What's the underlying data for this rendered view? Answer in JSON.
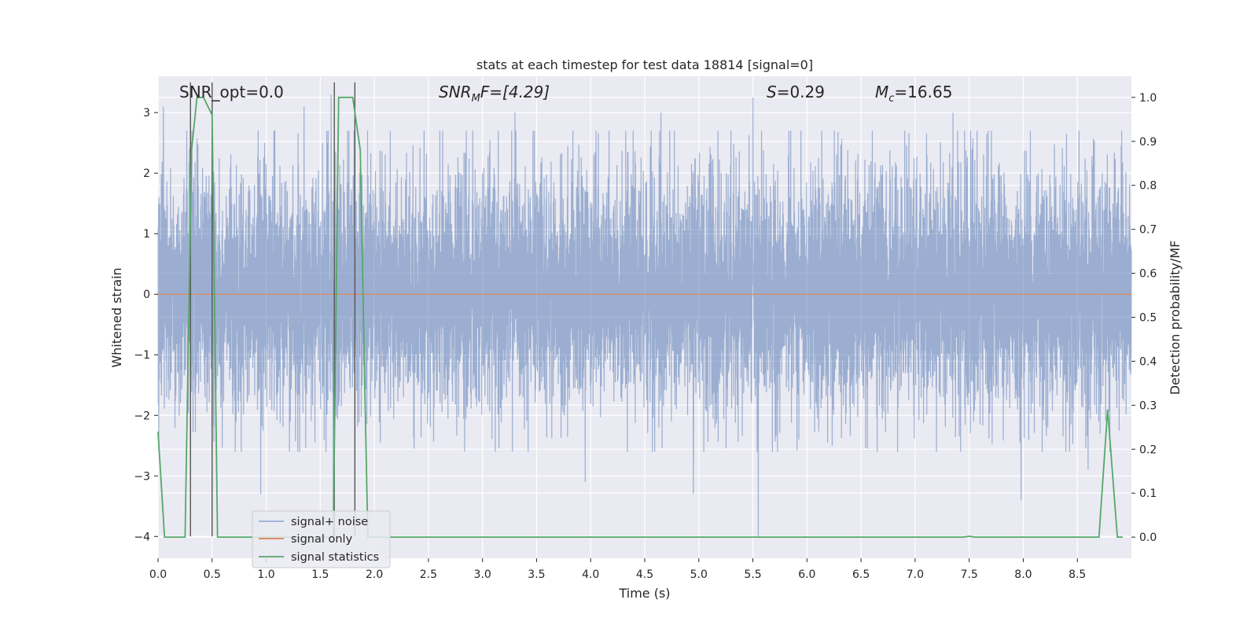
{
  "chart_data": {
    "type": "line",
    "title": "stats at each timestep for test data 18814 [signal=0]",
    "xlabel": "Time (s)",
    "ylabel": "Whitened strain",
    "y2label": "Detection probability/MF",
    "xlim": [
      0.0,
      9.0
    ],
    "ylim": [
      -4.36,
      3.6
    ],
    "y2lim": [
      -0.048,
      1.048
    ],
    "xticks": [
      0.0,
      0.5,
      1.0,
      1.5,
      2.0,
      2.5,
      3.0,
      3.5,
      4.0,
      4.5,
      5.0,
      5.5,
      6.0,
      6.5,
      7.0,
      7.5,
      8.0,
      8.5
    ],
    "xtick_labels": [
      "0.0",
      "0.5",
      "1.0",
      "1.5",
      "2.0",
      "2.5",
      "3.0",
      "3.5",
      "4.0",
      "4.5",
      "5.0",
      "5.5",
      "6.0",
      "6.5",
      "7.0",
      "7.5",
      "8.0",
      "8.5"
    ],
    "yticks": [
      -4,
      -3,
      -2,
      -1,
      0,
      1,
      2,
      3
    ],
    "ytick_labels": [
      "−4",
      "−3",
      "−2",
      "−1",
      "0",
      "1",
      "2",
      "3"
    ],
    "y2ticks": [
      0.0,
      0.1,
      0.2,
      0.3,
      0.4,
      0.5,
      0.6,
      0.7,
      0.8,
      0.9,
      1.0
    ],
    "y2tick_labels": [
      "0.0",
      "0.1",
      "0.2",
      "0.3",
      "0.4",
      "0.5",
      "0.6",
      "0.7",
      "0.8",
      "0.9",
      "1.0"
    ],
    "annotations": {
      "snr_opt": "SNR_opt=0.0",
      "snr_mf_base": "SNR",
      "snr_mf_sub": "M",
      "snr_mf_rest": "F=[4.29]",
      "s_base": "S",
      "s_rest": "=0.29",
      "mc_base": "M",
      "mc_sub": "c",
      "mc_rest": "=16.65"
    },
    "vertical_markers": [
      0.3,
      0.5,
      1.63,
      1.82
    ],
    "noise_envelope": {
      "series_name": "signal+ noise",
      "x_range": [
        0.0,
        9.0
      ],
      "typical_band": [
        -1.6,
        1.8
      ],
      "notable_peaks": [
        {
          "x": 0.05,
          "y": 3.1
        },
        {
          "x": 0.5,
          "y": 2.4
        },
        {
          "x": 1.35,
          "y": 3.1
        },
        {
          "x": 1.6,
          "y": 3.3
        },
        {
          "x": 3.3,
          "y": 3.0
        },
        {
          "x": 4.65,
          "y": 3.0
        },
        {
          "x": 5.5,
          "y": 3.25
        },
        {
          "x": 7.35,
          "y": 3.0
        },
        {
          "x": 7.98,
          "y": 3.45
        }
      ],
      "notable_troughs": [
        {
          "x": 0.95,
          "y": -3.3
        },
        {
          "x": 1.62,
          "y": -3.8
        },
        {
          "x": 3.95,
          "y": -3.1
        },
        {
          "x": 4.95,
          "y": -3.3
        },
        {
          "x": 5.55,
          "y": -4.0
        },
        {
          "x": 7.98,
          "y": -3.4
        },
        {
          "x": 8.6,
          "y": -2.9
        }
      ]
    },
    "signal_only": {
      "series_name": "signal only",
      "value": 0.0
    },
    "signal_statistics": {
      "series_name": "signal statistics",
      "x": [
        0.0,
        0.06,
        0.25,
        0.31,
        0.36,
        0.42,
        0.5,
        0.55,
        1.62,
        1.67,
        1.72,
        1.8,
        1.87,
        1.91,
        1.94,
        2.0,
        7.45,
        7.5,
        7.55,
        8.7,
        8.78,
        8.87,
        8.92
      ],
      "y": [
        0.24,
        0.0,
        0.0,
        0.88,
        1.0,
        1.0,
        0.96,
        0.0,
        0.0,
        1.0,
        1.0,
        1.0,
        0.88,
        0.36,
        0.0,
        0.0,
        0.0,
        0.002,
        0.0,
        0.0,
        0.29,
        0.0,
        0.0
      ]
    },
    "legend": {
      "placement": "lower-left",
      "entries": [
        "signal+ noise",
        "signal only",
        "signal statistics"
      ]
    },
    "colors": {
      "background": "#EAEAF2",
      "grid": "#FFFFFF",
      "noise": "#4C72B0",
      "signal": "#DD8452",
      "statistics": "#55A868",
      "marker": "#555555",
      "text": "#262626"
    }
  }
}
